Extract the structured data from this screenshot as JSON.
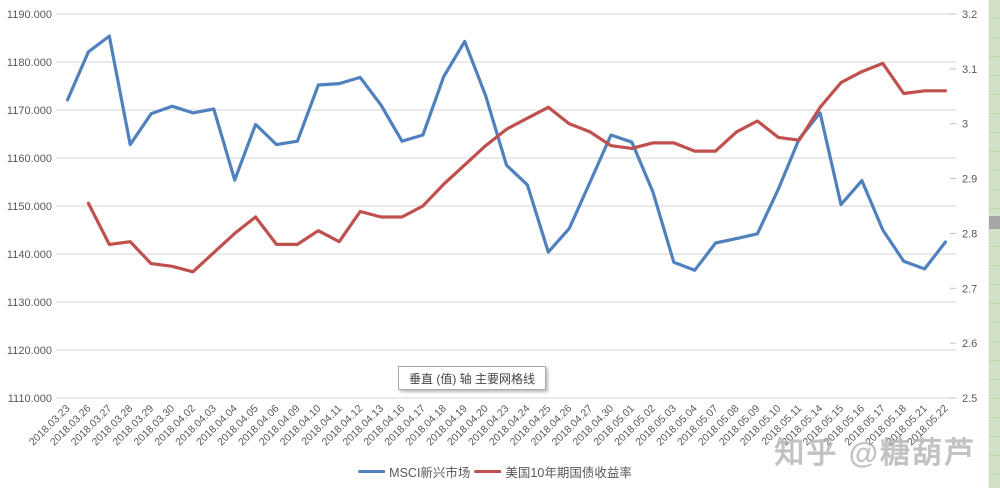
{
  "tooltip": {
    "text": "垂直 (值) 轴 主要网格线"
  },
  "watermark": {
    "text": "知乎 @糖葫芦"
  },
  "legend": {
    "items": [
      {
        "label": "MSCI新兴市场",
        "color": "#4F81BD"
      },
      {
        "label": "美国10年期国债收益率",
        "color": "#C0504D"
      }
    ]
  },
  "chart_data": {
    "type": "line",
    "title": "",
    "grid": true,
    "legend_position": "bottom",
    "categories": [
      "2018.03.23",
      "2018.03.26",
      "2018.03.27",
      "2018.03.28",
      "2018.03.29",
      "2018.03.30",
      "2018.04.02",
      "2018.04.03",
      "2018.04.04",
      "2018.04.05",
      "2018.04.06",
      "2018.04.09",
      "2018.04.10",
      "2018.04.11",
      "2018.04.12",
      "2018.04.13",
      "2018.04.16",
      "2018.04.17",
      "2018.04.18",
      "2018.04.19",
      "2018.04.20",
      "2018.04.23",
      "2018.04.24",
      "2018.04.25",
      "2018.04.26",
      "2018.04.27",
      "2018.04.30",
      "2018.05.01",
      "2018.05.02",
      "2018.05.03",
      "2018.05.04",
      "2018.05.07",
      "2018.05.08",
      "2018.05.09",
      "2018.05.10",
      "2018.05.11",
      "2018.05.14",
      "2018.05.15",
      "2018.05.16",
      "2018.05.17",
      "2018.05.18",
      "2018.05.21",
      "2018.05.22"
    ],
    "left_axis": {
      "min": 1110,
      "max": 1190,
      "step": 10,
      "tick_labels": [
        "1190.000",
        "1180.000",
        "1170.000",
        "1160.000",
        "1150.000",
        "1140.000",
        "1130.000",
        "1120.000",
        "1110.000"
      ]
    },
    "right_axis": {
      "min": 2.5,
      "max": 3.2,
      "step": 0.1,
      "tick_labels": [
        "3.2",
        "3.1",
        "3",
        "2.9",
        "2.8",
        "2.7",
        "2.6",
        "2.5"
      ]
    },
    "series": [
      {
        "name": "MSCI新兴市场",
        "axis": "left",
        "color": "#4F81BD",
        "values": [
          1172.1,
          1182.1,
          1185.4,
          1162.8,
          1169.2,
          1170.8,
          1169.4,
          1170.2,
          1155.4,
          1167.0,
          1162.8,
          1163.5,
          1175.2,
          1175.5,
          1176.8,
          1171.0,
          1163.5,
          1164.8,
          1177.0,
          1184.3,
          1173.0,
          1158.5,
          1154.4,
          1140.4,
          1145.3,
          1155.0,
          1164.8,
          1163.3,
          1153.0,
          1138.3,
          1136.6,
          1142.3,
          1143.2,
          1144.2,
          1153.5,
          1164.0,
          1169.4,
          1150.3,
          1155.3,
          1145.0,
          1138.5,
          1136.9,
          1142.5
        ]
      },
      {
        "name": "美国10年期国债收益率",
        "axis": "right",
        "color": "#C0504D",
        "values": [
          null,
          2.855,
          2.78,
          2.785,
          2.745,
          2.74,
          2.73,
          2.765,
          2.8,
          2.83,
          2.78,
          2.78,
          2.805,
          2.785,
          2.84,
          2.83,
          2.83,
          2.85,
          2.89,
          2.925,
          2.96,
          2.99,
          3.01,
          3.03,
          3.0,
          2.985,
          2.96,
          2.955,
          2.965,
          2.965,
          2.95,
          2.95,
          2.985,
          3.005,
          2.975,
          2.97,
          3.03,
          3.075,
          3.095,
          3.11,
          3.055,
          3.06,
          3.06
        ]
      }
    ]
  }
}
